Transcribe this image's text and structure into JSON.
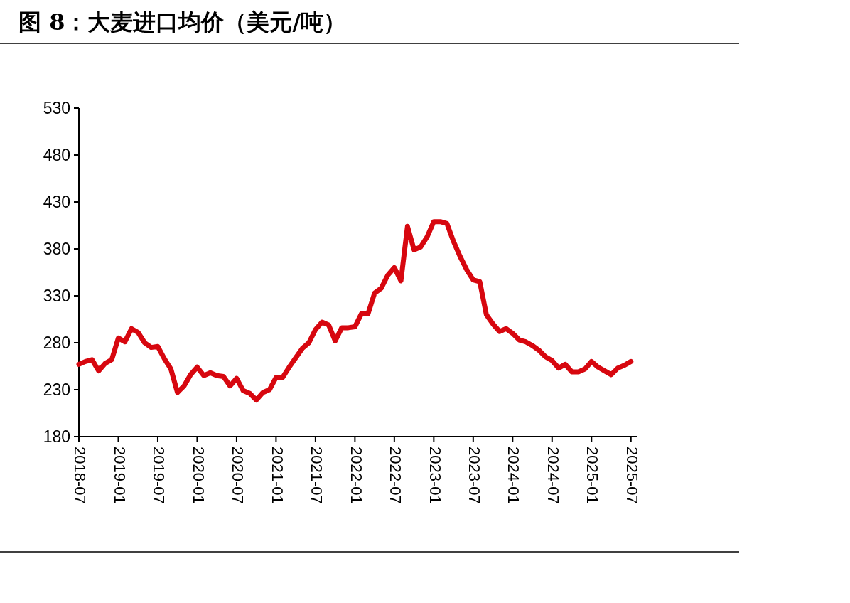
{
  "chart_data": {
    "type": "line",
    "title": "图 8：大麦进口均价（美元/吨）",
    "x": [
      "2018-07",
      "2018-08",
      "2018-09",
      "2018-10",
      "2018-11",
      "2018-12",
      "2019-01",
      "2019-02",
      "2019-03",
      "2019-04",
      "2019-05",
      "2019-06",
      "2019-07",
      "2019-08",
      "2019-09",
      "2019-10",
      "2019-11",
      "2019-12",
      "2020-01",
      "2020-02",
      "2020-03",
      "2020-04",
      "2020-05",
      "2020-06",
      "2020-07",
      "2020-08",
      "2020-09",
      "2020-10",
      "2020-11",
      "2020-12",
      "2021-01",
      "2021-02",
      "2021-03",
      "2021-04",
      "2021-05",
      "2021-06",
      "2021-07",
      "2021-08",
      "2021-09",
      "2021-10",
      "2021-11",
      "2021-12",
      "2022-01",
      "2022-02",
      "2022-03",
      "2022-04",
      "2022-05",
      "2022-06",
      "2022-07",
      "2022-08",
      "2022-09",
      "2022-10",
      "2022-11",
      "2022-12",
      "2023-01",
      "2023-02",
      "2023-03",
      "2023-04",
      "2023-05",
      "2023-06",
      "2023-07",
      "2023-08",
      "2023-09",
      "2023-10",
      "2023-11",
      "2023-12",
      "2024-01",
      "2024-02",
      "2024-03",
      "2024-04",
      "2024-05",
      "2024-06",
      "2024-07",
      "2024-08",
      "2024-09",
      "2024-10",
      "2024-11",
      "2024-12",
      "2025-01",
      "2025-02",
      "2025-03",
      "2025-04",
      "2025-05",
      "2025-06",
      "2025-07"
    ],
    "series": [
      {
        "color": "#d7070f",
        "values": [
          257,
          260,
          262,
          250,
          258,
          262,
          285,
          281,
          295,
          291,
          280,
          275,
          276,
          263,
          252,
          227,
          234,
          246,
          254,
          245,
          248,
          245,
          244,
          234,
          242,
          229,
          226,
          219,
          227,
          230,
          243,
          243,
          254,
          264,
          274,
          280,
          294,
          302,
          299,
          282,
          296,
          296,
          297,
          311,
          311,
          333,
          338,
          352,
          360,
          346,
          404,
          379,
          382,
          393,
          409,
          409,
          407,
          388,
          372,
          358,
          347,
          345,
          310,
          300,
          292,
          295,
          290,
          283,
          281,
          277,
          272,
          265,
          261,
          253,
          257,
          249,
          249,
          252,
          260,
          254,
          250,
          246,
          253,
          256,
          260
        ]
      }
    ],
    "xlim": [
      "2018-07",
      "2025-08"
    ],
    "xticks": [
      "2018-07",
      "2019-01",
      "2019-07",
      "2020-01",
      "2020-07",
      "2021-01",
      "2021-07",
      "2022-01",
      "2022-07",
      "2023-01",
      "2023-07",
      "2024-01",
      "2024-07",
      "2025-01",
      "2025-07"
    ],
    "ylim": [
      180,
      530
    ],
    "yticks": [
      180,
      230,
      280,
      330,
      380,
      430,
      480,
      530
    ],
    "grid": false,
    "marker": "none",
    "line_style": "solid"
  }
}
